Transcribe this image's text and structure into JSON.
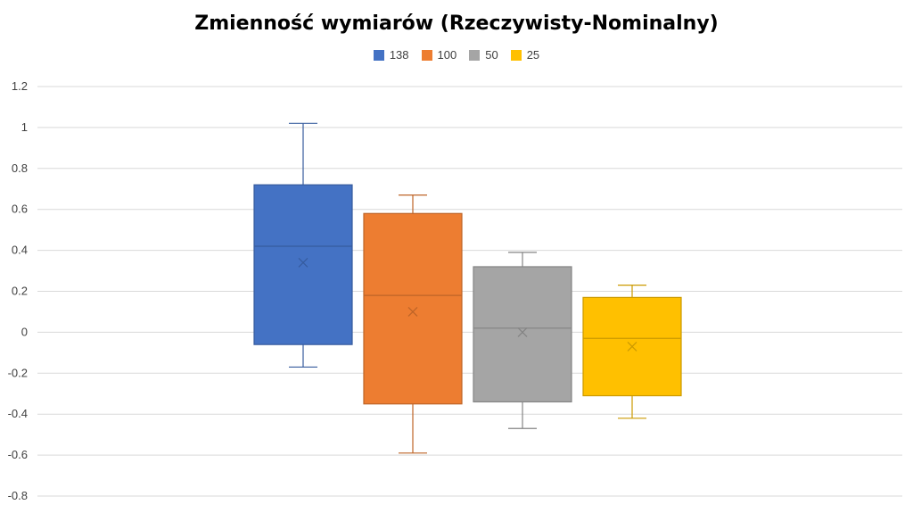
{
  "chart_data": {
    "type": "box",
    "title": "Zmienność wymiarów (Rzeczywisty-Nominalny)",
    "ylim": [
      -0.8,
      1.2
    ],
    "yticks": [
      -0.8,
      -0.6,
      -0.4,
      -0.2,
      0,
      0.2,
      0.4,
      0.6,
      0.8,
      1,
      1.2
    ],
    "ytick_labels": [
      "-0.8",
      "-0.6",
      "-0.4",
      "-0.2",
      "0",
      "0.2",
      "0.4",
      "0.6",
      "0.8",
      "1",
      "1.2"
    ],
    "grid": true,
    "legend_position": "top",
    "series": [
      {
        "name": "138",
        "color": "#4472C4",
        "whisker_low": -0.17,
        "q1": -0.06,
        "median": 0.42,
        "q3": 0.72,
        "whisker_high": 1.02,
        "mean": 0.34
      },
      {
        "name": "100",
        "color": "#ED7D31",
        "whisker_low": -0.59,
        "q1": -0.35,
        "median": 0.18,
        "q3": 0.58,
        "whisker_high": 0.67,
        "mean": 0.1
      },
      {
        "name": "50",
        "color": "#A5A5A5",
        "whisker_low": -0.47,
        "q1": -0.34,
        "median": 0.02,
        "q3": 0.32,
        "whisker_high": 0.39,
        "mean": 0.0
      },
      {
        "name": "25",
        "color": "#FFC000",
        "whisker_low": -0.42,
        "q1": -0.31,
        "median": -0.03,
        "q3": 0.17,
        "whisker_high": 0.23,
        "mean": -0.07
      }
    ]
  }
}
